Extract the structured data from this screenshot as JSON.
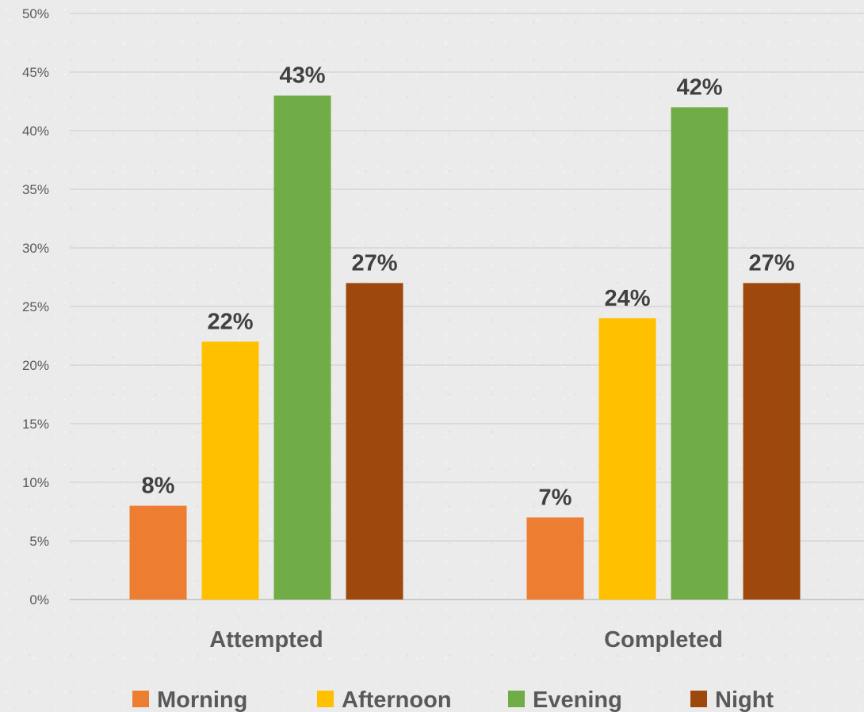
{
  "chart_data": {
    "type": "bar",
    "title": "",
    "xlabel": "",
    "ylabel": "",
    "categories": [
      "Attempted",
      "Completed"
    ],
    "series": [
      {
        "name": "Morning",
        "color": "#ed7d31",
        "values": [
          8,
          7
        ],
        "labels": [
          "8%",
          "7%"
        ]
      },
      {
        "name": "Afternoon",
        "color": "#ffc000",
        "values": [
          22,
          24
        ],
        "labels": [
          "22%",
          "24%"
        ]
      },
      {
        "name": "Evening",
        "color": "#70ad47",
        "values": [
          43,
          42
        ],
        "labels": [
          "43%",
          "42%"
        ]
      },
      {
        "name": "Night",
        "color": "#9e480e",
        "values": [
          27,
          27
        ],
        "labels": [
          "27%",
          "27%"
        ]
      }
    ],
    "ylim": [
      0,
      50
    ],
    "yticks": [
      0,
      5,
      10,
      15,
      20,
      25,
      30,
      35,
      40,
      45,
      50
    ],
    "ytick_labels": [
      "0%",
      "5%",
      "10%",
      "15%",
      "20%",
      "25%",
      "30%",
      "35%",
      "40%",
      "45%",
      "50%"
    ],
    "grid": true,
    "legend_position": "bottom"
  }
}
